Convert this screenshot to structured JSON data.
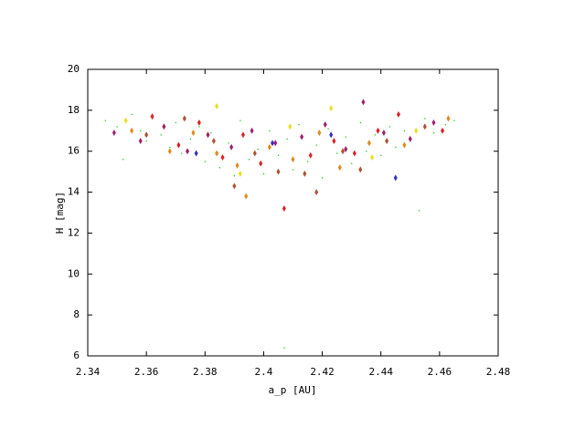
{
  "chart_data": {
    "type": "scatter",
    "xlabel": "a_p [AU]",
    "ylabel": "H [mag]",
    "xlim": [
      2.34,
      2.48
    ],
    "xticks": [
      2.34,
      2.36,
      2.38,
      2.4,
      2.42,
      2.44,
      2.46,
      2.48
    ],
    "ylim": [
      6,
      20
    ],
    "yticks": [
      6,
      8,
      10,
      12,
      14,
      16,
      18,
      20
    ],
    "series": [
      {
        "color": "#00c000",
        "marker": "dot",
        "x": [
          2.346,
          2.35,
          2.352,
          2.355,
          2.358,
          2.36,
          2.362,
          2.365,
          2.368,
          2.37,
          2.372,
          2.375,
          2.378,
          2.38,
          2.382,
          2.385,
          2.388,
          2.39,
          2.392,
          2.395,
          2.398,
          2.4,
          2.402,
          2.405,
          2.407,
          2.408,
          2.41,
          2.412,
          2.415,
          2.418,
          2.42,
          2.422,
          2.425,
          2.428,
          2.43,
          2.433,
          2.435,
          2.438,
          2.44,
          2.443,
          2.445,
          2.448,
          2.45,
          2.453,
          2.455,
          2.458,
          2.462,
          2.465
        ],
        "values": [
          17.5,
          17.2,
          15.6,
          17.8,
          17.0,
          16.5,
          17.6,
          16.8,
          16.2,
          17.4,
          15.9,
          16.6,
          17.2,
          15.5,
          16.9,
          15.2,
          16.4,
          14.8,
          17.5,
          15.6,
          16.1,
          14.9,
          17.0,
          15.8,
          6.4,
          16.6,
          15.1,
          17.3,
          15.5,
          16.3,
          14.7,
          17.1,
          15.9,
          16.7,
          15.4,
          17.4,
          16.0,
          16.8,
          15.8,
          17.2,
          16.2,
          17.0,
          16.5,
          13.1,
          17.6,
          16.9,
          17.3,
          17.5
        ]
      },
      {
        "color": "#a0206a",
        "marker": "diamond",
        "x": [
          2.349,
          2.358,
          2.366,
          2.374,
          2.381,
          2.389,
          2.396,
          2.404,
          2.413,
          2.421,
          2.428,
          2.434,
          2.441,
          2.45,
          2.458
        ],
        "values": [
          16.9,
          16.5,
          17.2,
          16.0,
          16.8,
          16.2,
          17.0,
          16.4,
          16.7,
          17.3,
          16.1,
          18.4,
          16.9,
          16.6,
          17.4
        ]
      },
      {
        "color": "#e02020",
        "marker": "diamond",
        "x": [
          2.362,
          2.371,
          2.378,
          2.386,
          2.393,
          2.399,
          2.407,
          2.416,
          2.424,
          2.431,
          2.439,
          2.446,
          2.461
        ],
        "values": [
          17.7,
          16.3,
          17.4,
          15.7,
          16.8,
          15.4,
          13.2,
          15.8,
          16.5,
          15.9,
          17.0,
          17.8,
          17.0
        ]
      },
      {
        "color": "#e08a20",
        "marker": "diamond",
        "x": [
          2.355,
          2.368,
          2.376,
          2.384,
          2.391,
          2.394,
          2.402,
          2.41,
          2.419,
          2.426,
          2.436,
          2.448,
          2.463
        ],
        "values": [
          17.0,
          16.0,
          16.9,
          15.9,
          15.3,
          13.8,
          16.2,
          15.6,
          16.9,
          15.2,
          16.4,
          16.3,
          17.6
        ]
      },
      {
        "color": "#b05030",
        "marker": "diamond",
        "x": [
          2.36,
          2.373,
          2.383,
          2.39,
          2.397,
          2.405,
          2.414,
          2.418,
          2.427,
          2.433,
          2.442,
          2.455
        ],
        "values": [
          16.8,
          17.6,
          16.5,
          14.3,
          15.9,
          15.0,
          14.9,
          14.0,
          16.0,
          15.1,
          16.5,
          17.2
        ]
      },
      {
        "color": "#e6e020",
        "marker": "diamond",
        "x": [
          2.353,
          2.384,
          2.392,
          2.409,
          2.423,
          2.437,
          2.452
        ],
        "values": [
          17.5,
          18.2,
          14.9,
          17.2,
          18.1,
          15.7,
          17.0
        ]
      },
      {
        "color": "#3030c0",
        "marker": "diamond",
        "x": [
          2.377,
          2.403,
          2.423,
          2.445
        ],
        "values": [
          15.9,
          16.4,
          16.8,
          14.7
        ]
      }
    ]
  }
}
